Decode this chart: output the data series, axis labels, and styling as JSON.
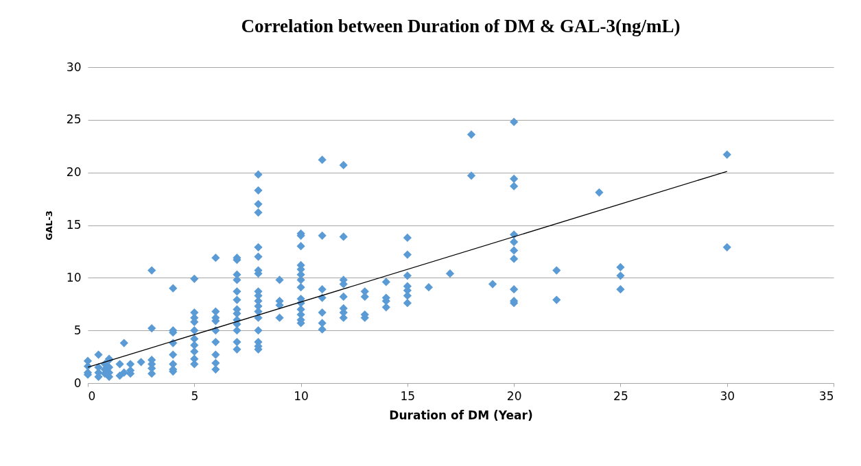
{
  "chart_data": {
    "type": "scatter",
    "title": "Correlation between Duration of DM & GAL-3(ng/mL)",
    "xlabel": "Duration of DM (Year)",
    "ylabel": "GAL-3",
    "xlim": [
      0,
      35
    ],
    "xticks": [
      0,
      5,
      10,
      15,
      20,
      25,
      30,
      35
    ],
    "ylim": [
      0,
      30
    ],
    "yticks": [
      0,
      5,
      10,
      15,
      20,
      25,
      30
    ],
    "grid": "y",
    "marker": "diamond",
    "series": [
      {
        "color": "#5b9bd5",
        "x": [
          0,
          0,
          0,
          0,
          0.5,
          0.5,
          0.5,
          0.5,
          0.8,
          0.8,
          0.8,
          1,
          1,
          1,
          1,
          1,
          1.5,
          1.5,
          1.7,
          1.7,
          2,
          2,
          2,
          2.5,
          3,
          3,
          3,
          3,
          3,
          3,
          4,
          4,
          4,
          4,
          4,
          4,
          4,
          4,
          5,
          5,
          5,
          5,
          5,
          5,
          5,
          5,
          5,
          5,
          6,
          6,
          6,
          6,
          6,
          6,
          6,
          6,
          6,
          7,
          7,
          7,
          7,
          7,
          7,
          7,
          7,
          7,
          7,
          7,
          7,
          7,
          8,
          8,
          8,
          8,
          8,
          8,
          8,
          8,
          8,
          8,
          8,
          8,
          8,
          8,
          8,
          8,
          8,
          8,
          9,
          9,
          9,
          9,
          10,
          10,
          10,
          10,
          10,
          10,
          10,
          10,
          10,
          10,
          10,
          10,
          10,
          10,
          11,
          11,
          11,
          11,
          11,
          11,
          11,
          12,
          12,
          12,
          12,
          12,
          12,
          12,
          12,
          13,
          13,
          13,
          13,
          14,
          14,
          14,
          14,
          15,
          15,
          15,
          15,
          15,
          15,
          15,
          16,
          17,
          18,
          18,
          19,
          20,
          20,
          20,
          20,
          20,
          20,
          20,
          20,
          20,
          20,
          22,
          22,
          24,
          25,
          25,
          25,
          30,
          30
        ],
        "values": [
          0.8,
          1.6,
          2.1,
          1.0,
          0.6,
          1.0,
          1.5,
          2.7,
          0.9,
          1.8,
          1.3,
          0.6,
          1.0,
          2.2,
          2.3,
          1.5,
          0.7,
          1.8,
          3.8,
          1.0,
          0.9,
          1.2,
          1.8,
          2.0,
          10.7,
          5.2,
          2.2,
          1.8,
          1.4,
          0.9,
          9.0,
          5.0,
          4.8,
          3.8,
          2.7,
          1.8,
          1.3,
          1.1,
          9.9,
          6.7,
          6.2,
          5.8,
          5.0,
          4.2,
          3.6,
          3.0,
          2.3,
          1.8,
          11.9,
          6.8,
          6.2,
          5.9,
          5.0,
          3.9,
          2.7,
          1.9,
          1.3,
          11.9,
          11.7,
          10.3,
          9.8,
          8.7,
          7.9,
          7.0,
          6.6,
          6.0,
          5.6,
          5.0,
          3.9,
          3.2,
          19.8,
          18.3,
          17.0,
          16.2,
          12.9,
          12.0,
          10.7,
          10.4,
          8.7,
          8.3,
          7.8,
          7.3,
          6.8,
          6.2,
          5.0,
          3.9,
          3.5,
          3.2,
          9.8,
          7.8,
          7.4,
          6.2,
          14.2,
          14.0,
          13.0,
          11.2,
          10.8,
          10.3,
          9.8,
          9.1,
          8.0,
          7.6,
          7.0,
          6.5,
          6.0,
          5.7,
          21.2,
          14.0,
          8.9,
          8.1,
          6.7,
          5.7,
          5.1,
          20.7,
          13.9,
          9.8,
          9.4,
          8.2,
          7.1,
          6.7,
          6.2,
          8.7,
          8.2,
          6.5,
          6.2,
          9.6,
          8.1,
          7.8,
          7.2,
          13.8,
          12.2,
          10.2,
          9.2,
          8.8,
          8.3,
          7.6,
          9.1,
          10.4,
          23.6,
          19.7,
          9.4,
          24.8,
          19.4,
          18.7,
          14.1,
          13.4,
          12.6,
          11.8,
          8.9,
          7.8,
          7.6,
          10.7,
          7.9,
          18.1,
          11.0,
          10.2,
          8.9,
          21.7,
          12.9
        ]
      },
      {
        "type": "line",
        "color": "#000000",
        "marker": "none",
        "x": [
          0,
          30
        ],
        "values": [
          1.5,
          20.1
        ]
      }
    ]
  }
}
